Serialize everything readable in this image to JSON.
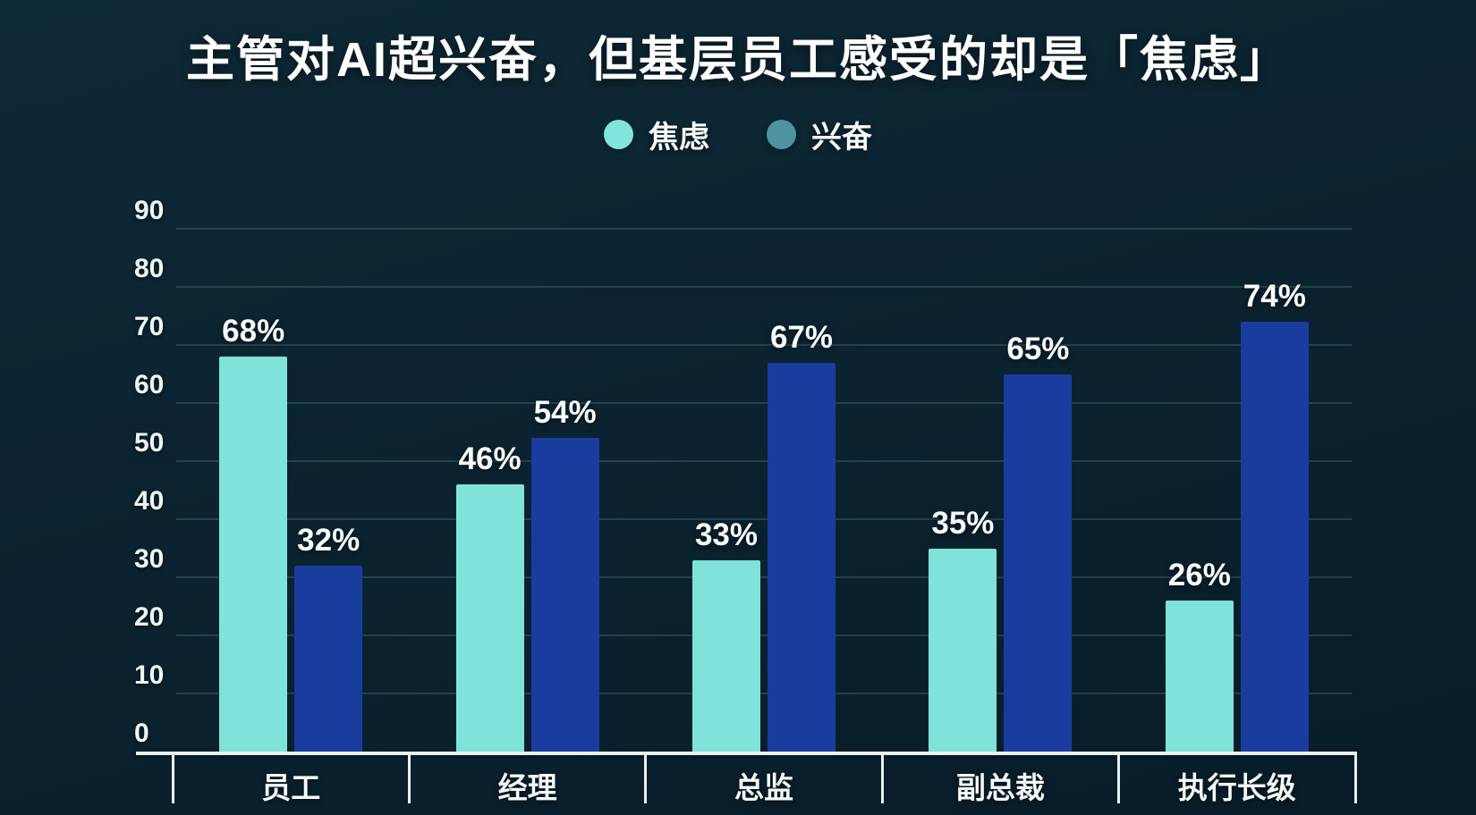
{
  "chart_data": {
    "type": "bar",
    "title": "主管对AI超兴奋，但基层员工感受的却是「焦虑」",
    "categories": [
      "员工",
      "经理",
      "总监",
      "副总裁",
      "执行长级"
    ],
    "series": [
      {
        "name": "焦虑",
        "bar_color": "#7FE3D9",
        "legend_swatch": "#82E5DB",
        "values": [
          68,
          46,
          33,
          35,
          26
        ]
      },
      {
        "name": "兴奋",
        "bar_color": "#1A3C9E",
        "legend_swatch": "#4F93A0",
        "values": [
          32,
          54,
          67,
          65,
          74
        ]
      }
    ],
    "value_labels": [
      [
        "68%",
        "46%",
        "33%",
        "35%",
        "26%"
      ],
      [
        "32%",
        "54%",
        "67%",
        "65%",
        "74%"
      ]
    ],
    "xlabel": "",
    "ylabel": "",
    "ylim": [
      0,
      90
    ],
    "yticks": [
      0,
      10,
      20,
      30,
      40,
      50,
      60,
      70,
      80,
      90
    ],
    "grid": true,
    "legend_position": "top",
    "colors": {
      "background": "#0B2330",
      "gridline": "#2C4855",
      "axis": "#E9F0F2",
      "text": "#F4F8F9"
    }
  }
}
